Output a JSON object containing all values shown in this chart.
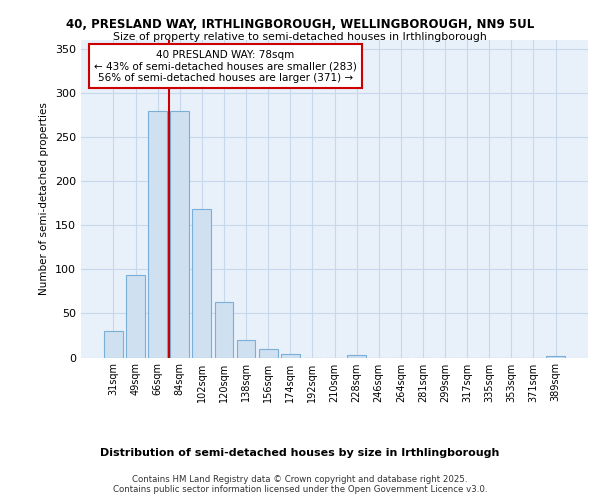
{
  "title1": "40, PRESLAND WAY, IRTHLINGBOROUGH, WELLINGBOROUGH, NN9 5UL",
  "title2": "Size of property relative to semi-detached houses in Irthlingborough",
  "xlabel": "Distribution of semi-detached houses by size in Irthlingborough",
  "ylabel": "Number of semi-detached properties",
  "bins": [
    "31sqm",
    "49sqm",
    "66sqm",
    "84sqm",
    "102sqm",
    "120sqm",
    "138sqm",
    "156sqm",
    "174sqm",
    "192sqm",
    "210sqm",
    "228sqm",
    "246sqm",
    "264sqm",
    "281sqm",
    "299sqm",
    "317sqm",
    "335sqm",
    "353sqm",
    "371sqm",
    "389sqm"
  ],
  "values": [
    30,
    93,
    280,
    280,
    168,
    63,
    20,
    10,
    4,
    0,
    0,
    3,
    0,
    0,
    0,
    0,
    0,
    0,
    0,
    0,
    2
  ],
  "bar_color": "#cfe0f0",
  "bar_edge_color": "#7ab0d8",
  "grid_color": "#c8d8ec",
  "background_color": "#e8f0fa",
  "red_line_x": 2.5,
  "red_line_color": "#cc0000",
  "annotation_text": "40 PRESLAND WAY: 78sqm\n← 43% of semi-detached houses are smaller (283)\n56% of semi-detached houses are larger (371) →",
  "annotation_box_color": "#ffffff",
  "annotation_box_edge": "#cc0000",
  "footer1": "Contains HM Land Registry data © Crown copyright and database right 2025.",
  "footer2": "Contains public sector information licensed under the Open Government Licence v3.0.",
  "ylim": [
    0,
    360
  ],
  "yticks": [
    0,
    50,
    100,
    150,
    200,
    250,
    300,
    350
  ]
}
